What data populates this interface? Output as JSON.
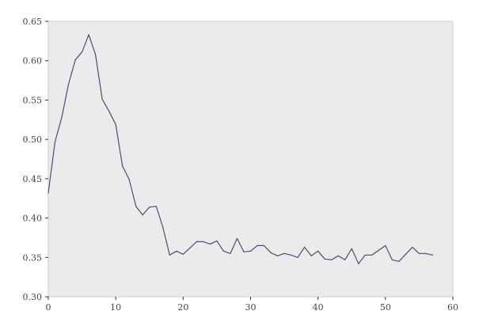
{
  "chart_data": {
    "type": "line",
    "title": "",
    "xlabel": "",
    "ylabel": "",
    "xlim": [
      0,
      60
    ],
    "ylim": [
      0.3,
      0.65
    ],
    "xticks": [
      0,
      10,
      20,
      30,
      40,
      50,
      60
    ],
    "yticks": [
      0.3,
      0.35,
      0.4,
      0.45,
      0.5,
      0.55,
      0.6,
      0.65
    ],
    "xtick_labels": [
      "0",
      "10",
      "20",
      "30",
      "40",
      "50",
      "60"
    ],
    "ytick_labels": [
      "0.30",
      "0.35",
      "0.40",
      "0.45",
      "0.50",
      "0.55",
      "0.60",
      "0.65"
    ],
    "grid": false,
    "legend": "none",
    "colors": {
      "line": "#4a4f73",
      "plot_background": "#ebebeb"
    },
    "series": [
      {
        "x": [
          0,
          1,
          2,
          3,
          4,
          5,
          6,
          7,
          8,
          9,
          10,
          11,
          12,
          13,
          14,
          15,
          16,
          17,
          18,
          19,
          20,
          21,
          22,
          23,
          24,
          25,
          26,
          27,
          28,
          29,
          30,
          31,
          32,
          33,
          34,
          35,
          36,
          37,
          38,
          39,
          40,
          41,
          42,
          43,
          44,
          45,
          46,
          47,
          48,
          49,
          50,
          51,
          52,
          53,
          54,
          55,
          56,
          57
        ],
        "y": [
          0.432,
          0.497,
          0.528,
          0.57,
          0.601,
          0.611,
          0.633,
          0.608,
          0.551,
          0.536,
          0.519,
          0.466,
          0.449,
          0.415,
          0.404,
          0.414,
          0.415,
          0.388,
          0.353,
          0.358,
          0.354,
          0.362,
          0.37,
          0.37,
          0.367,
          0.371,
          0.358,
          0.355,
          0.374,
          0.357,
          0.358,
          0.365,
          0.365,
          0.356,
          0.352,
          0.355,
          0.353,
          0.35,
          0.363,
          0.352,
          0.358,
          0.348,
          0.347,
          0.352,
          0.347,
          0.361,
          0.342,
          0.353,
          0.353,
          0.359,
          0.365,
          0.347,
          0.345,
          0.354,
          0.363,
          0.355,
          0.355,
          0.353
        ]
      }
    ]
  }
}
